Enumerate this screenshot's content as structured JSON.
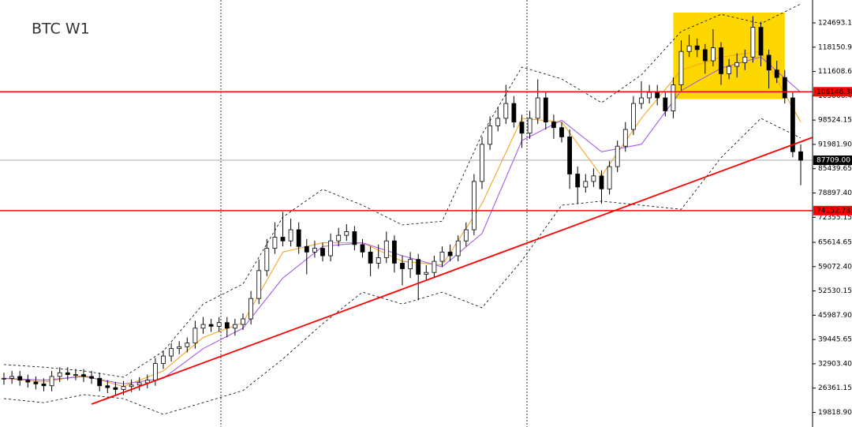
{
  "chart_data": {
    "type": "candlestick",
    "title": "BTC W1",
    "open": [
      28800,
      29000,
      29500,
      28500,
      28000,
      27500,
      27000,
      29500,
      30500,
      30000,
      30000,
      29500,
      29000,
      27000,
      26500,
      26000,
      26800,
      27200,
      27800,
      28500,
      33000,
      35000,
      37000,
      37500,
      38500,
      42500,
      43500,
      43000,
      44000,
      42500,
      43500,
      45000,
      50500,
      58000,
      64000,
      67000,
      66000,
      69000,
      64500,
      63000,
      64000,
      62000,
      66000,
      67500,
      68500,
      65000,
      63000,
      60000,
      61500,
      66000,
      60000,
      58500,
      61000,
      57000,
      57500,
      60500,
      63000,
      62000,
      66000,
      69000,
      82000,
      92000,
      97000,
      99000,
      103000,
      98000,
      95000,
      99000,
      104500,
      98000,
      96500,
      94000,
      84000,
      80500,
      82000,
      83500,
      80000,
      86000,
      91500,
      96000,
      103000,
      104500,
      106000,
      104500,
      101000,
      108000,
      117000,
      118500,
      117500,
      114500,
      118000,
      111000,
      113000,
      114000,
      115500,
      123500,
      116000,
      112000,
      110000,
      104500,
      90000
    ],
    "high": [
      30500,
      31000,
      31000,
      30000,
      29500,
      29000,
      31000,
      32000,
      32000,
      31500,
      31500,
      31000,
      30500,
      28500,
      28000,
      28300,
      28700,
      29300,
      30000,
      34500,
      36500,
      38500,
      39000,
      40000,
      44500,
      45500,
      45000,
      45500,
      45500,
      45000,
      46500,
      52500,
      61000,
      66500,
      71000,
      73800,
      72000,
      71000,
      66500,
      66000,
      65500,
      68000,
      69500,
      70500,
      70000,
      66500,
      64500,
      65000,
      68500,
      67500,
      62000,
      63000,
      62500,
      59500,
      62000,
      64500,
      65000,
      67500,
      71000,
      84000,
      94000,
      99500,
      102000,
      108000,
      105000,
      100000,
      101000,
      109500,
      106000,
      100000,
      98000,
      96000,
      86000,
      84000,
      85500,
      85000,
      87500,
      93000,
      98000,
      105000,
      109000,
      108000,
      108000,
      106000,
      110000,
      120000,
      121500,
      120500,
      119000,
      123000,
      119500,
      115000,
      116500,
      117500,
      126500,
      125000,
      117500,
      114500,
      112000,
      106000,
      92000
    ],
    "low": [
      27300,
      27500,
      27000,
      26500,
      26000,
      25500,
      25500,
      28000,
      28500,
      28500,
      28000,
      27500,
      25500,
      25000,
      24500,
      24500,
      25300,
      25700,
      26300,
      27000,
      31500,
      33500,
      35500,
      36000,
      37000,
      41000,
      41500,
      41500,
      40000,
      40500,
      42000,
      43500,
      49000,
      56500,
      62500,
      64500,
      64500,
      62500,
      57000,
      61500,
      60500,
      60500,
      64500,
      66000,
      63500,
      61500,
      56500,
      58500,
      60000,
      57500,
      54000,
      56000,
      50000,
      55500,
      56000,
      59000,
      60500,
      60500,
      64500,
      67500,
      80000,
      90500,
      95500,
      97500,
      96500,
      91000,
      93500,
      97500,
      96000,
      93500,
      92500,
      80000,
      76000,
      79000,
      80500,
      76000,
      78500,
      84500,
      90000,
      94500,
      101500,
      103000,
      102500,
      99500,
      99000,
      106500,
      115500,
      115500,
      111000,
      113000,
      108000,
      109500,
      110000,
      112000,
      114000,
      113000,
      107000,
      108500,
      103000,
      88500,
      81000
    ],
    "close": [
      29000,
      29500,
      28500,
      28000,
      27500,
      27000,
      29500,
      30500,
      30000,
      30000,
      29500,
      29000,
      27000,
      26500,
      26000,
      26800,
      27200,
      27800,
      28500,
      33000,
      35000,
      37000,
      37500,
      38500,
      42500,
      43500,
      43000,
      44000,
      42500,
      43500,
      45000,
      50500,
      58000,
      64000,
      67000,
      66000,
      69000,
      64500,
      63000,
      64000,
      62000,
      66000,
      67500,
      68500,
      65000,
      63000,
      60000,
      61500,
      66000,
      60000,
      58500,
      61000,
      57000,
      57500,
      60500,
      63000,
      62000,
      66000,
      69000,
      82000,
      92000,
      97000,
      99000,
      103000,
      98000,
      95000,
      99000,
      104500,
      98000,
      96500,
      94000,
      84000,
      80500,
      82000,
      83500,
      80000,
      86000,
      91500,
      96000,
      103000,
      104500,
      106000,
      104500,
      101000,
      108000,
      117000,
      118500,
      117500,
      114500,
      118000,
      111000,
      113000,
      114000,
      115500,
      123500,
      116000,
      112000,
      110000,
      104500,
      90000,
      87709
    ],
    "ylim": [
      15893,
      130856
    ],
    "yticks": [
      124693.15,
      {
        "value": 118150.9,
        "label": "118150.90"
      },
      111608.65,
      {
        "value": 105066.4,
        "label": "105066.40"
      },
      98524.15,
      {
        "value": 91981.9,
        "label": "91981.90"
      },
      85439.65,
      {
        "value": 78897.4,
        "label": "78897.40"
      },
      72355.15,
      65614.65,
      {
        "value": 59072.4,
        "label": "59072.40"
      },
      52530.15,
      {
        "value": 45987.9,
        "label": "45987.90"
      },
      39445.65,
      {
        "value": 32903.4,
        "label": "32903.40"
      },
      26361.15,
      {
        "value": 19818.9,
        "label": "19818.90"
      }
    ],
    "indicators": [
      {
        "color": "#000000",
        "dash": true,
        "x": [
          0,
          5,
          10,
          15,
          20,
          25,
          30,
          35,
          40,
          45,
          50,
          55,
          60,
          65,
          70,
          75,
          80,
          85,
          90,
          95,
          100
        ],
        "values": [
          32700,
          32000,
          31000,
          29300,
          36300,
          49000,
          54400,
          72400,
          79900,
          75600,
          70300,
          71300,
          94700,
          112800,
          109600,
          103200,
          110700,
          122400,
          127000,
          124500,
          129800
        ]
      },
      {
        "color": "#000000",
        "dash": true,
        "x": [
          0,
          5,
          10,
          15,
          20,
          25,
          30,
          35,
          40,
          45,
          50,
          55,
          60,
          65,
          70,
          75,
          80,
          85,
          90,
          95,
          100
        ],
        "values": [
          23540,
          22450,
          24600,
          23540,
          19300,
          22450,
          25700,
          34200,
          43700,
          52200,
          49000,
          52200,
          48000,
          60700,
          75600,
          76700,
          75600,
          74500,
          88400,
          99000,
          93700
        ]
      },
      {
        "color": "#f5a623",
        "dash": false,
        "x": [
          0,
          5,
          10,
          15,
          20,
          25,
          30,
          35,
          40,
          45,
          50,
          55,
          60,
          65,
          70,
          75,
          80,
          85,
          90,
          95,
          100
        ],
        "values": [
          29000,
          28000,
          29800,
          26800,
          31000,
          40000,
          44000,
          63000,
          65500,
          65500,
          60500,
          59500,
          76000,
          99000,
          98000,
          83500,
          99000,
          112000,
          115500,
          117000,
          98000
        ]
      },
      {
        "color": "#a25ee8",
        "dash": false,
        "x": [
          0,
          5,
          10,
          15,
          20,
          25,
          30,
          35,
          40,
          45,
          50,
          55,
          60,
          65,
          70,
          75,
          80,
          85,
          90,
          95,
          100
        ],
        "values": [
          29000,
          28500,
          29500,
          27500,
          29000,
          37000,
          42500,
          56000,
          64500,
          65500,
          62000,
          59000,
          68000,
          93000,
          98500,
          90000,
          92000,
          106500,
          112500,
          115500,
          106000
        ]
      }
    ],
    "box": {
      "x": [
        84,
        98
      ],
      "y": [
        104180,
        127455
      ],
      "color": "#ffd700"
    },
    "trendline": {
      "x": [
        11,
        101.5
      ],
      "y": [
        22050,
        93880
      ],
      "color": "#ff0000"
    },
    "hlines": [
      {
        "value": 106148.38,
        "color": "#ff0000"
      },
      {
        "value": 74152.78,
        "color": "#ff0000"
      }
    ],
    "last_price": {
      "value": 87709,
      "label": "87709.00"
    }
  }
}
